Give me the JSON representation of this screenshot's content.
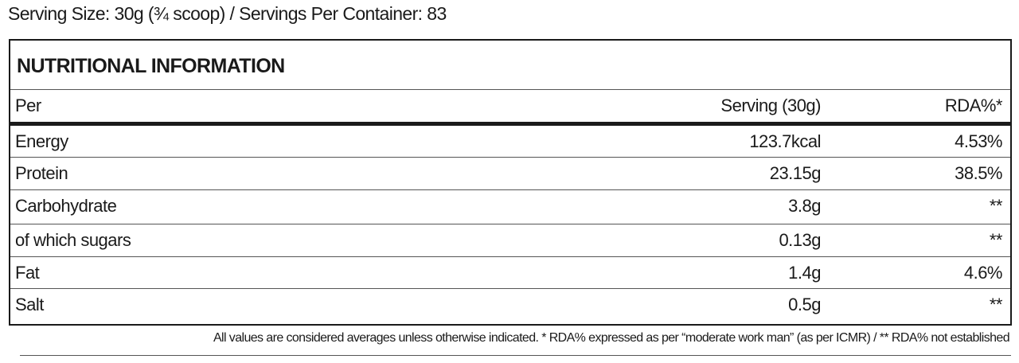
{
  "serving_info": "Serving Size: 30g (¾ scoop)  / Servings Per Container: 83",
  "table": {
    "title": "NUTRITIONAL INFORMATION",
    "header": [
      "Per",
      "Serving (30g)",
      "RDA%*"
    ],
    "rows": [
      [
        "Energy",
        "123.7kcal",
        "4.53%"
      ],
      [
        "Protein",
        "23.15g",
        "38.5%"
      ],
      [
        "Carbohydrate",
        "3.8g",
        "**"
      ],
      [
        "of which sugars",
        "0.13g",
        "**"
      ],
      [
        "Fat",
        "1.4g",
        "4.6%"
      ],
      [
        "Salt",
        "0.5g",
        "**"
      ]
    ]
  },
  "footnote": "All values are considered averages unless otherwise indicated. * RDA% expressed as per “moderate work man” (as per ICMR) /  ** RDA% not established"
}
